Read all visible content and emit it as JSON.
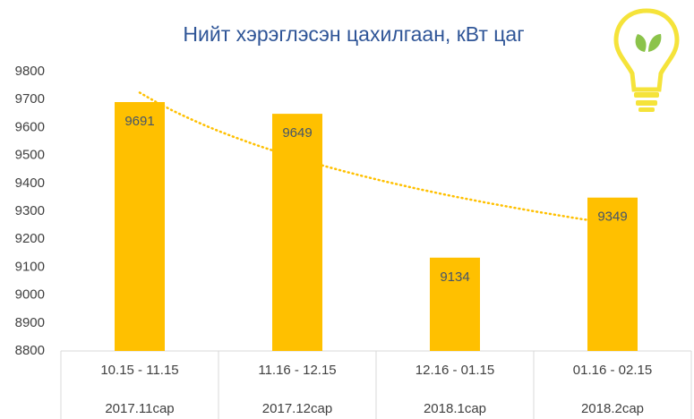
{
  "chart_data": {
    "type": "bar",
    "title": "Нийт хэрэглэсэн цахилгаан, кВт цаг",
    "categories": [
      "10.15 - 11.15",
      "11.16 - 12.15",
      "12.16 - 01.15",
      "01.16 - 02.15"
    ],
    "category_groups": [
      "2017.11сар",
      "2017.12сар",
      "2018.1сар",
      "2018.2сар"
    ],
    "values": [
      9691,
      9649,
      9134,
      9349
    ],
    "color": "#FFC000",
    "ylim": [
      8800,
      9800
    ],
    "yticks": [
      8800,
      8900,
      9000,
      9100,
      9200,
      9300,
      9400,
      9500,
      9600,
      9700,
      9800
    ],
    "trendline": "logarithmic"
  }
}
